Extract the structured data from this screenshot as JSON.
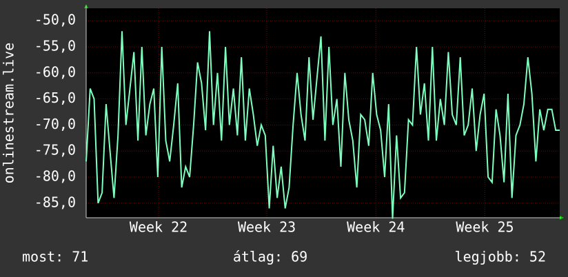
{
  "chart_data": {
    "type": "line",
    "y_label": "onlinestream.live",
    "color": "#7fffbf",
    "grid": true,
    "ylim": [
      -87.8,
      -47.6
    ],
    "yticks": [
      {
        "value": -50,
        "label": "-50,0"
      },
      {
        "value": -55,
        "label": "-55,0"
      },
      {
        "value": -60,
        "label": "-60,0"
      },
      {
        "value": -65,
        "label": "-65,0"
      },
      {
        "value": -70,
        "label": "-70,0"
      },
      {
        "value": -75,
        "label": "-75,0"
      },
      {
        "value": -80,
        "label": "-80,0"
      },
      {
        "value": -85,
        "label": "-85,0"
      }
    ],
    "xlim": [
      0,
      119
    ],
    "xticks": [
      {
        "value": 18.2,
        "label": "Week 22"
      },
      {
        "value": 45.4,
        "label": "Week 23"
      },
      {
        "value": 72.8,
        "label": "Week 24"
      },
      {
        "value": 100.2,
        "label": "Week 25"
      }
    ],
    "x": [
      0,
      1,
      2,
      3,
      4,
      5,
      6,
      7,
      8,
      9,
      10,
      11,
      12,
      13,
      14,
      15,
      16,
      17,
      18,
      19,
      20,
      21,
      22,
      23,
      24,
      25,
      26,
      27,
      28,
      29,
      30,
      31,
      32,
      33,
      34,
      35,
      36,
      37,
      38,
      39,
      40,
      41,
      42,
      43,
      44,
      45,
      46,
      47,
      48,
      49,
      50,
      51,
      52,
      53,
      54,
      55,
      56,
      57,
      58,
      59,
      60,
      61,
      62,
      63,
      64,
      65,
      66,
      67,
      68,
      69,
      70,
      71,
      72,
      73,
      74,
      75,
      76,
      77,
      78,
      79,
      80,
      81,
      82,
      83,
      84,
      85,
      86,
      87,
      88,
      89,
      90,
      91,
      92,
      93,
      94,
      95,
      96,
      97,
      98,
      99,
      100,
      101,
      102,
      103,
      104,
      105,
      106,
      107,
      108,
      109,
      110,
      111,
      112,
      113,
      114,
      115,
      116,
      117,
      118,
      119
    ],
    "values": [
      -77,
      -63,
      -65,
      -85,
      -83,
      -66,
      -75,
      -84,
      -72,
      -52,
      -70,
      -63,
      -56,
      -73,
      -55,
      -72,
      -66,
      -63,
      -80,
      -55,
      -73,
      -77,
      -70,
      -62,
      -82,
      -78,
      -80,
      -70,
      -58,
      -62,
      -71,
      -52,
      -70,
      -60,
      -73,
      -55,
      -70,
      -63,
      -72,
      -57,
      -73,
      -63,
      -68,
      -74,
      -70,
      -72,
      -86,
      -74,
      -84,
      -78,
      -86,
      -82,
      -70,
      -60,
      -68,
      -73,
      -57,
      -69,
      -61,
      -53,
      -73,
      -55,
      -70,
      -65,
      -78,
      -60,
      -69,
      -73,
      -82,
      -68,
      -69,
      -74,
      -60,
      -68,
      -71,
      -80,
      -66,
      -88,
      -72,
      -84,
      -83,
      -69,
      -70,
      -55,
      -68,
      -62,
      -73,
      -55,
      -73,
      -65,
      -70,
      -56,
      -68,
      -70,
      -57,
      -72,
      -70,
      -63,
      -75,
      -68,
      -64,
      -80,
      -81,
      -67,
      -72,
      -81,
      -64,
      -84,
      -72,
      -70,
      -66,
      -57,
      -64,
      -77,
      -67,
      -71,
      -67,
      -67,
      -71,
      -71
    ],
    "footer": [
      "most: 71",
      "átlag: 69",
      "legjobb: 52"
    ]
  }
}
